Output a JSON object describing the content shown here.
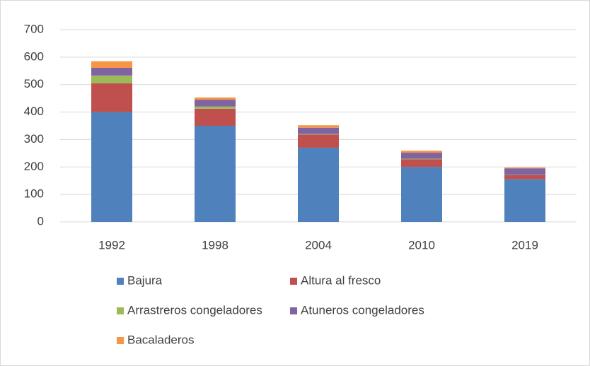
{
  "chart_data": {
    "type": "stacked_bar",
    "categories": [
      "1992",
      "1998",
      "2004",
      "2010",
      "2019"
    ],
    "series": [
      {
        "name": "Bajura",
        "color": "#4f81bd",
        "values": [
          400,
          350,
          270,
          200,
          155
        ]
      },
      {
        "name": "Altura al fresco",
        "color": "#c0504d",
        "values": [
          105,
          62,
          48,
          28,
          15
        ]
      },
      {
        "name": "Arrastreros congeladores",
        "color": "#9bbb59",
        "values": [
          28,
          8,
          2,
          2,
          1
        ]
      },
      {
        "name": "Atuneros congeladores",
        "color": "#8064a2",
        "values": [
          28,
          25,
          23,
          22,
          24
        ]
      },
      {
        "name": "Bacaladeros",
        "color": "#f79646",
        "values": [
          24,
          8,
          9,
          7,
          3
        ]
      }
    ],
    "ylim": [
      0,
      700
    ],
    "yticks": [
      0,
      100,
      200,
      300,
      400,
      500,
      600,
      700
    ],
    "grid": true,
    "legend": "bottom"
  }
}
